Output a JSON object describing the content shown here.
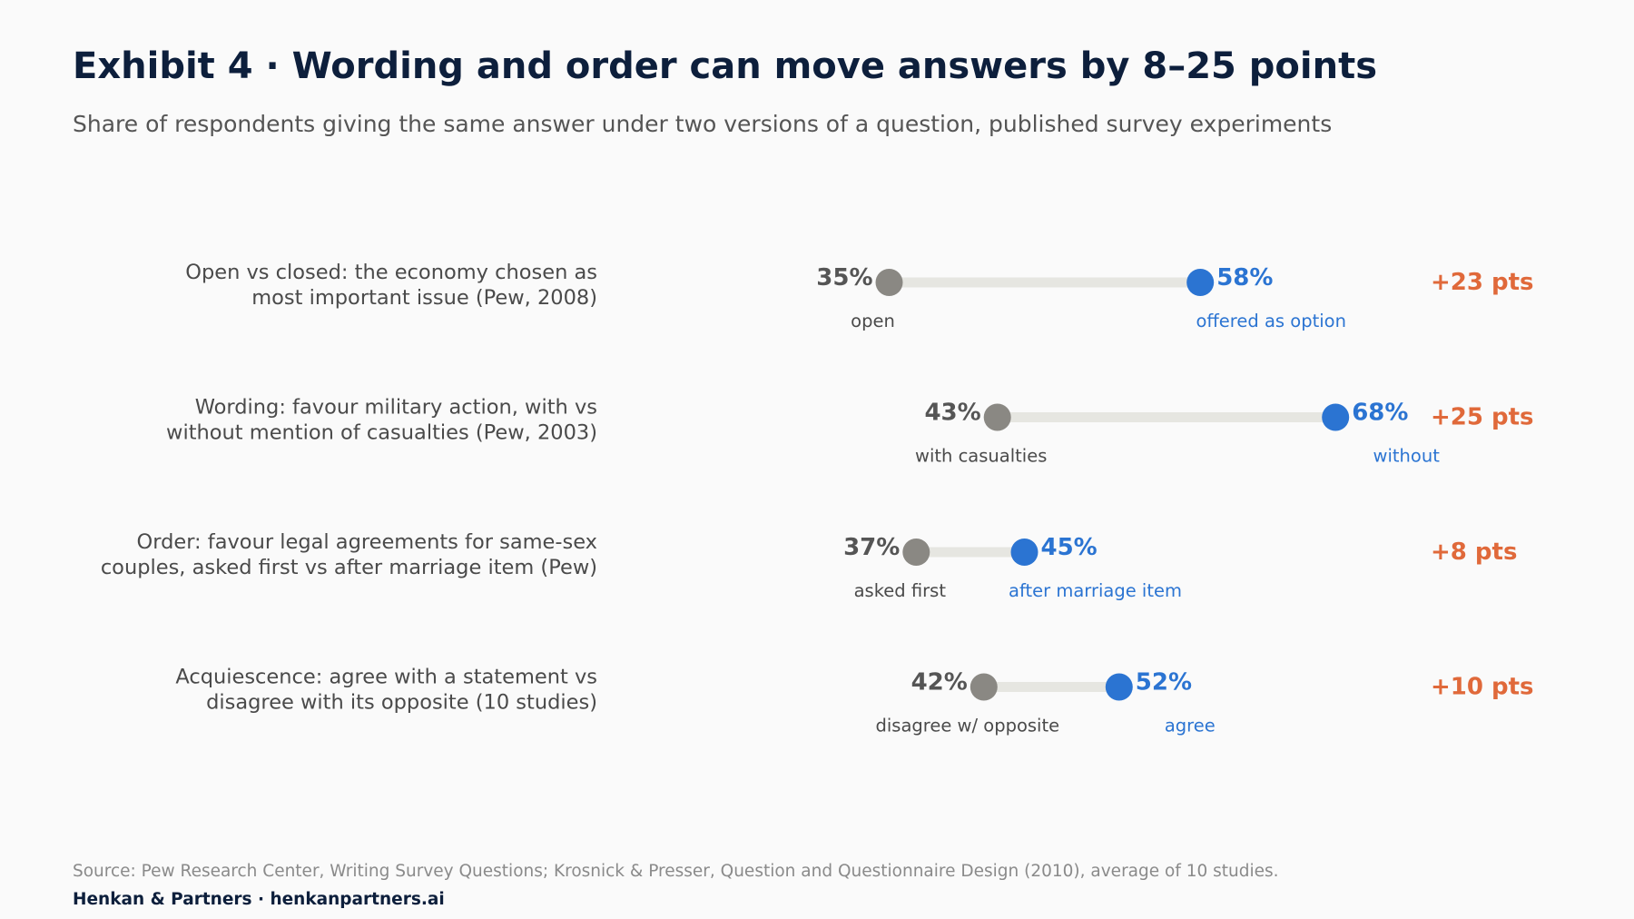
{
  "title": "Exhibit 4 · Wording and order can move answers by 8–25 points",
  "subtitle": "Share of respondents giving the same answer under two versions of a question, published survey experiments",
  "colors": {
    "low_dot": "#8a8883",
    "high_dot": "#2b74d2",
    "track": "#e6e6e1",
    "label_text": "#4a4a4a",
    "low_value_text": "#555555",
    "high_text": "#2b74d2",
    "delta_text": "#e0693a"
  },
  "chart_data": {
    "type": "dumbbell",
    "unit": "%",
    "xlim": [
      0,
      100
    ],
    "rows": [
      {
        "label_lines": [
          "Open vs closed: the economy chosen as",
          "most important issue (Pew, 2008)"
        ],
        "low_value": 35,
        "low_text": "35%",
        "low_label": "open",
        "high_value": 58,
        "high_text": "58%",
        "high_label": "offered as option",
        "delta_text": "+23 pts"
      },
      {
        "label_lines": [
          "Wording: favour military action, with vs",
          "without mention of casualties (Pew, 2003)"
        ],
        "low_value": 43,
        "low_text": "43%",
        "low_label": "with casualties",
        "high_value": 68,
        "high_text": "68%",
        "high_label": "without",
        "delta_text": "+25 pts"
      },
      {
        "label_lines": [
          "Order: favour legal agreements for same-sex",
          "couples, asked first vs after marriage item (Pew)"
        ],
        "low_value": 37,
        "low_text": "37%",
        "low_label": "asked first",
        "high_value": 45,
        "high_text": "45%",
        "high_label": "after marriage item",
        "delta_text": "+8 pts"
      },
      {
        "label_lines": [
          "Acquiescence: agree with a statement vs",
          "disagree with its opposite (10 studies)"
        ],
        "low_value": 42,
        "low_text": "42%",
        "low_label": "disagree w/ opposite",
        "high_value": 52,
        "high_text": "52%",
        "high_label": "agree",
        "delta_text": "+10 pts"
      }
    ]
  },
  "footer": {
    "source": "Source: Pew Research Center, Writing Survey Questions; Krosnick & Presser, Question and Questionnaire Design (2010), average of 10 studies.",
    "brand": "Henkan & Partners · henkanpartners.ai"
  }
}
